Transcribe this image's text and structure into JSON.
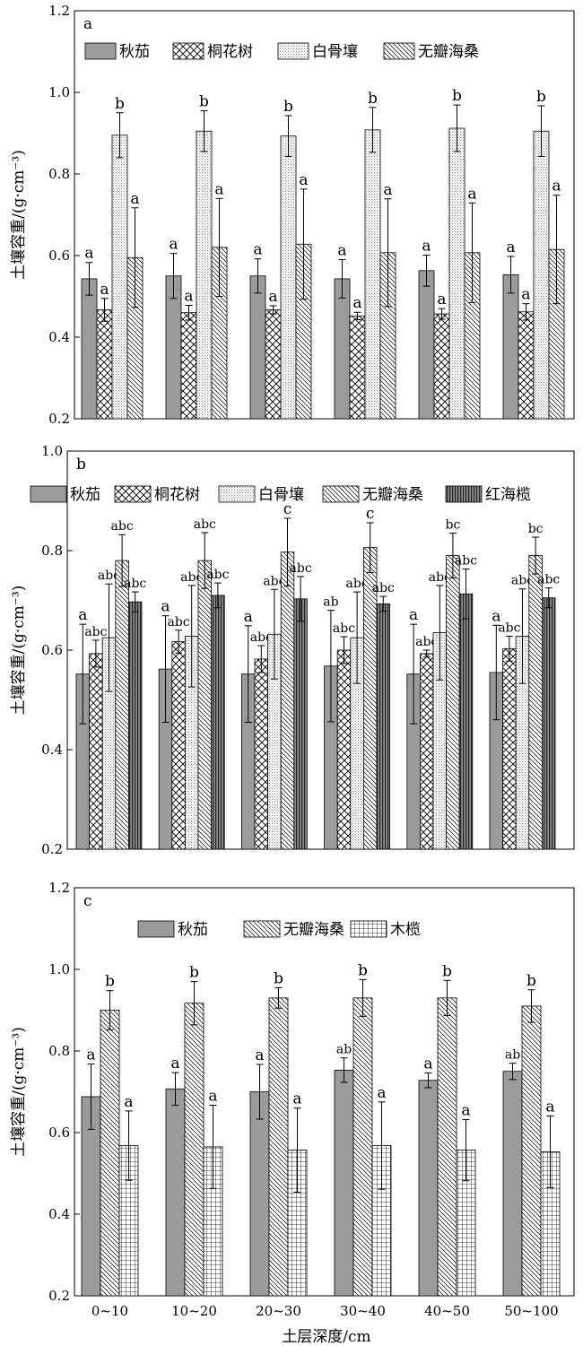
{
  "x_axis_title": "土层深度/cm",
  "chart_data": [
    {
      "type": "bar",
      "panel_label": "a",
      "ylabel": "土壤容重/(g·cm⁻³)",
      "ylim": [
        0.2,
        1.2
      ],
      "yticks": [
        "0.2",
        "0.4",
        "0.6",
        "0.8",
        "1.0",
        "1.2"
      ],
      "categories": [
        "0~10",
        "10~20",
        "20~30",
        "30~40",
        "40~50",
        "50~100"
      ],
      "legend": "top",
      "series": [
        {
          "name": "秋茄",
          "pattern": "solid",
          "values": [
            0.543,
            0.55,
            0.55,
            0.543,
            0.563,
            0.553
          ],
          "errors": [
            0.04,
            0.055,
            0.042,
            0.047,
            0.038,
            0.045
          ],
          "letters": [
            "a",
            "a",
            "a",
            "a",
            "a",
            "a"
          ]
        },
        {
          "name": "桐花树",
          "pattern": "cross",
          "values": [
            0.467,
            0.46,
            0.467,
            0.452,
            0.457,
            0.462
          ],
          "errors": [
            0.028,
            0.018,
            0.01,
            0.009,
            0.013,
            0.02
          ],
          "letters": [
            "a",
            "a",
            "a",
            "a",
            "a",
            "a"
          ]
        },
        {
          "name": "白骨壤",
          "pattern": "dots",
          "values": [
            0.895,
            0.905,
            0.893,
            0.908,
            0.912,
            0.905
          ],
          "errors": [
            0.055,
            0.05,
            0.05,
            0.055,
            0.057,
            0.062
          ],
          "letters": [
            "b",
            "b",
            "b",
            "b",
            "b",
            "b"
          ]
        },
        {
          "name": "无瓣海桑",
          "pattern": "diag",
          "values": [
            0.595,
            0.62,
            0.628,
            0.607,
            0.607,
            0.615
          ],
          "errors": [
            0.122,
            0.12,
            0.135,
            0.132,
            0.122,
            0.133
          ],
          "letters": [
            "a",
            "a",
            "a",
            "a",
            "a",
            "a"
          ]
        }
      ]
    },
    {
      "type": "bar",
      "panel_label": "b",
      "ylabel": "土壤容重/(g·cm⁻³)",
      "ylim": [
        0.2,
        1.0
      ],
      "yticks": [
        "0.2",
        "0.4",
        "0.6",
        "0.8",
        "1.0"
      ],
      "categories": [
        "0~10",
        "10~20",
        "20~30",
        "30~40",
        "40~50",
        "50~100"
      ],
      "legend": "top",
      "series": [
        {
          "name": "秋茄",
          "pattern": "solid",
          "values": [
            0.552,
            0.562,
            0.552,
            0.568,
            0.552,
            0.555
          ],
          "errors": [
            0.1,
            0.107,
            0.097,
            0.112,
            0.1,
            0.095
          ],
          "letters": [
            "a",
            "a",
            "a",
            "ab",
            "a",
            "a"
          ]
        },
        {
          "name": "桐花树",
          "pattern": "cross",
          "values": [
            0.593,
            0.617,
            0.582,
            0.6,
            0.593,
            0.603
          ],
          "errors": [
            0.027,
            0.023,
            0.027,
            0.027,
            0.007,
            0.025
          ],
          "letters": [
            "abc",
            "abc",
            "abc",
            "abc",
            "abc",
            "abc"
          ]
        },
        {
          "name": "白骨壤",
          "pattern": "dots",
          "values": [
            0.625,
            0.628,
            0.632,
            0.625,
            0.635,
            0.628
          ],
          "errors": [
            0.108,
            0.102,
            0.09,
            0.092,
            0.095,
            0.095
          ],
          "letters": [
            "abc",
            "abc",
            "abc",
            "abc",
            "abc",
            "abc"
          ]
        },
        {
          "name": "无瓣海桑",
          "pattern": "diag",
          "values": [
            0.78,
            0.78,
            0.797,
            0.806,
            0.79,
            0.79
          ],
          "errors": [
            0.052,
            0.056,
            0.068,
            0.05,
            0.045,
            0.037
          ],
          "letters": [
            "abc",
            "abc",
            "c",
            "c",
            "bc",
            "bc"
          ]
        },
        {
          "name": "红海榄",
          "pattern": "vstripe",
          "values": [
            0.697,
            0.71,
            0.703,
            0.693,
            0.713,
            0.705
          ],
          "errors": [
            0.02,
            0.025,
            0.045,
            0.015,
            0.05,
            0.02
          ],
          "letters": [
            "abc",
            "abc",
            "abc",
            "abc",
            "abc",
            "abc"
          ]
        }
      ]
    },
    {
      "type": "bar",
      "panel_label": "c",
      "ylabel": "土壤容重/(g·cm⁻³)",
      "ylim": [
        0.2,
        1.2
      ],
      "yticks": [
        "0.2",
        "0.4",
        "0.6",
        "0.8",
        "1.0",
        "1.2"
      ],
      "categories": [
        "0~10",
        "10~20",
        "20~30",
        "30~40",
        "40~50",
        "50~100"
      ],
      "legend": "top",
      "series": [
        {
          "name": "秋茄",
          "pattern": "solid",
          "values": [
            0.688,
            0.707,
            0.7,
            0.753,
            0.728,
            0.75
          ],
          "errors": [
            0.08,
            0.04,
            0.067,
            0.03,
            0.018,
            0.02
          ],
          "letters": [
            "a",
            "a",
            "a",
            "ab",
            "a",
            "ab"
          ]
        },
        {
          "name": "无瓣海桑",
          "pattern": "diag",
          "values": [
            0.9,
            0.917,
            0.93,
            0.93,
            0.93,
            0.91
          ],
          "errors": [
            0.048,
            0.053,
            0.025,
            0.045,
            0.043,
            0.04
          ],
          "letters": [
            "b",
            "b",
            "b",
            "b",
            "b",
            "b"
          ]
        },
        {
          "name": "木榄",
          "pattern": "grid",
          "values": [
            0.568,
            0.565,
            0.557,
            0.568,
            0.557,
            0.553
          ],
          "errors": [
            0.085,
            0.102,
            0.103,
            0.107,
            0.075,
            0.088
          ],
          "letters": [
            "a",
            "a",
            "a",
            "a",
            "a",
            "a"
          ]
        }
      ]
    }
  ]
}
